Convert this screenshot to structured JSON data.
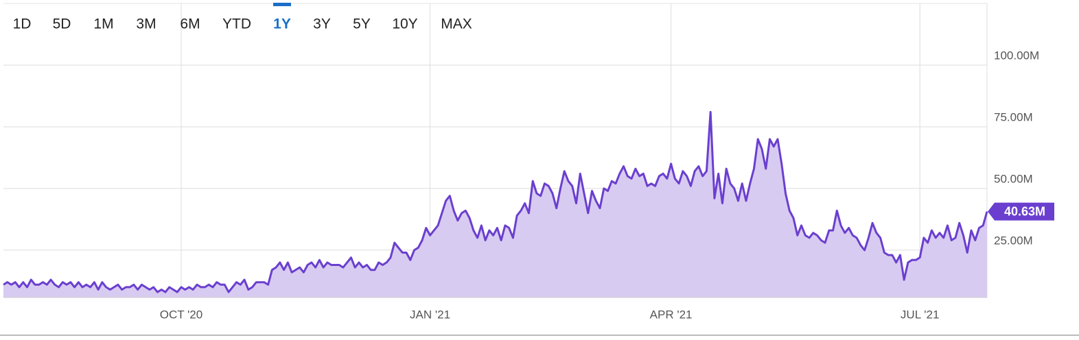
{
  "range_buttons": [
    "1D",
    "5D",
    "1M",
    "3M",
    "6M",
    "YTD",
    "1Y",
    "3Y",
    "5Y",
    "10Y",
    "MAX"
  ],
  "selected_range": "1Y",
  "chart_data": {
    "type": "area",
    "color": "#6a3fcf",
    "fill_color": "#d8cbf1",
    "grid": true,
    "xlim": [
      0,
      249
    ],
    "xticks": [
      {
        "value": 45,
        "label": "OCT '20"
      },
      {
        "value": 108,
        "label": "JAN '21"
      },
      {
        "value": 169,
        "label": "APR '21"
      },
      {
        "value": 232,
        "label": "JUL '21"
      }
    ],
    "ylim": [
      5800000,
      125000000
    ],
    "yticks": [
      {
        "value": 25000000,
        "label": "25.00M"
      },
      {
        "value": 50000000,
        "label": "50.00M"
      },
      {
        "value": 75000000,
        "label": "75.00M"
      },
      {
        "value": 100000000,
        "label": "100.00M"
      }
    ],
    "last_value_label": "40.63M",
    "values": [
      11000000,
      12000000,
      11000000,
      12000000,
      10000000,
      12000000,
      10000000,
      13000000,
      11000000,
      11000000,
      12000000,
      11000000,
      13000000,
      11000000,
      10000000,
      12000000,
      11000000,
      12000000,
      10000000,
      12000000,
      10000000,
      11000000,
      10000000,
      12000000,
      9000000,
      12000000,
      10000000,
      9000000,
      10000000,
      11000000,
      9000000,
      10000000,
      10000000,
      11000000,
      9000000,
      11000000,
      10000000,
      9000000,
      10000000,
      8000000,
      9000000,
      8000000,
      10000000,
      9000000,
      8000000,
      10000000,
      9000000,
      10000000,
      9000000,
      11000000,
      10000000,
      10000000,
      11000000,
      10000000,
      12000000,
      11000000,
      11000000,
      8000000,
      10000000,
      12000000,
      11000000,
      13000000,
      9000000,
      10000000,
      12000000,
      12000000,
      12000000,
      11000000,
      17000000,
      18000000,
      20000000,
      17000000,
      20000000,
      16000000,
      17000000,
      18000000,
      16000000,
      19000000,
      20000000,
      18000000,
      21000000,
      18000000,
      20000000,
      19000000,
      19000000,
      19000000,
      18000000,
      20000000,
      22000000,
      18000000,
      20000000,
      18000000,
      19000000,
      17000000,
      17000000,
      20000000,
      19000000,
      20000000,
      22000000,
      28000000,
      26000000,
      24000000,
      24000000,
      21000000,
      25000000,
      26000000,
      29000000,
      34000000,
      31000000,
      33000000,
      35000000,
      40000000,
      45000000,
      47000000,
      41000000,
      37000000,
      40000000,
      41000000,
      38000000,
      33000000,
      30000000,
      35000000,
      29000000,
      33000000,
      31000000,
      34000000,
      29000000,
      35000000,
      34000000,
      30000000,
      39000000,
      41000000,
      44000000,
      40000000,
      53000000,
      48000000,
      47000000,
      52000000,
      51000000,
      48000000,
      42000000,
      50000000,
      57000000,
      53000000,
      51000000,
      44000000,
      56000000,
      48000000,
      40000000,
      49000000,
      45000000,
      42000000,
      50000000,
      49000000,
      53000000,
      52000000,
      56000000,
      59000000,
      55000000,
      54000000,
      58000000,
      55000000,
      56000000,
      51000000,
      52000000,
      51000000,
      55000000,
      56000000,
      54000000,
      60000000,
      54000000,
      52000000,
      57000000,
      55000000,
      51000000,
      57000000,
      59000000,
      55000000,
      57000000,
      81000000,
      46000000,
      56000000,
      44000000,
      58000000,
      52000000,
      50000000,
      45000000,
      52000000,
      45000000,
      52000000,
      58000000,
      70000000,
      66000000,
      58000000,
      70000000,
      67000000,
      70000000,
      60000000,
      48000000,
      41000000,
      38000000,
      31000000,
      35000000,
      31000000,
      30000000,
      32000000,
      31000000,
      29000000,
      28000000,
      33000000,
      33000000,
      41000000,
      35000000,
      32000000,
      34000000,
      31000000,
      30000000,
      27000000,
      25000000,
      30000000,
      36000000,
      32000000,
      30000000,
      24000000,
      23000000,
      23000000,
      20000000,
      23000000,
      13000000,
      20000000,
      21000000,
      21000000,
      22000000,
      30000000,
      28000000,
      33000000,
      30000000,
      32000000,
      30000000,
      35000000,
      29000000,
      30000000,
      36000000,
      31000000,
      24000000,
      33000000,
      29000000,
      34000000,
      35000000,
      40630000
    ]
  }
}
